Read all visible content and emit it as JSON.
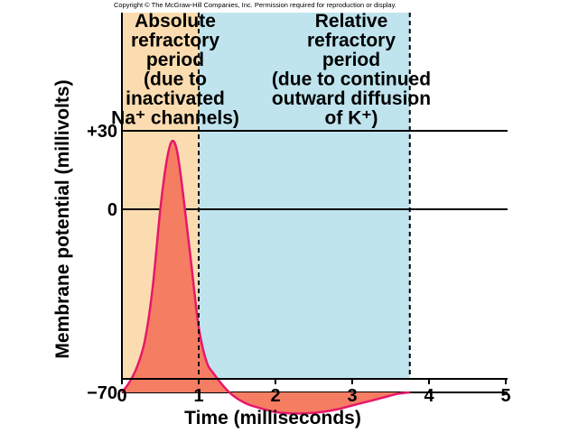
{
  "copyright": "Copyright © The McGraw-Hill Companies, Inc. Permission required for reproduction or display.",
  "colors": {
    "absolute_region": "#fbdcb0",
    "relative_region": "#bfe4ee",
    "curve_stroke": "#e6186a",
    "curve_fill": "#f57d62",
    "axis": "#000000"
  },
  "chart_data": {
    "type": "line",
    "title": "",
    "xlabel": "Time (milliseconds)",
    "ylabel": "Membrane potential (millivolts)",
    "xlim": [
      0,
      5
    ],
    "x_ticks": [
      "0",
      "1",
      "2",
      "3",
      "4",
      "5"
    ],
    "y_ticks": [
      {
        "label": "+30",
        "value": 30
      },
      {
        "label": "0",
        "value": 0
      },
      {
        "label": "−70",
        "value": -70
      }
    ],
    "grid": "horizontal lines at +30, 0 and -70 mV",
    "series": [
      {
        "x": [
          0,
          0.1,
          0.2,
          0.3,
          0.4,
          0.5,
          0.58,
          0.65,
          0.72,
          0.8,
          0.9,
          1.0,
          1.1,
          1.2,
          1.4,
          1.6,
          1.8,
          2.0,
          2.2,
          2.4,
          2.6,
          2.8,
          3.0,
          3.2,
          3.4,
          3.6,
          3.75
        ],
        "y": [
          -70,
          -66,
          -60,
          -50,
          -30,
          0,
          18,
          26,
          22,
          5,
          -20,
          -45,
          -58,
          -63,
          -70,
          -74,
          -76,
          -77.5,
          -78,
          -78,
          -77.5,
          -76.5,
          -75,
          -73.5,
          -72,
          -70.5,
          -70
        ]
      }
    ],
    "regions": [
      {
        "x_range": [
          0,
          1
        ],
        "label_lines": [
          "Absolute",
          "refractory",
          "period",
          "(due to",
          "inactivated",
          "Na⁺ channels)"
        ]
      },
      {
        "x_range": [
          1,
          3.75
        ],
        "label_lines": [
          "Relative",
          "refractory",
          "period",
          "(due to continued",
          "outward diffusion",
          "of K⁺)"
        ]
      }
    ]
  }
}
